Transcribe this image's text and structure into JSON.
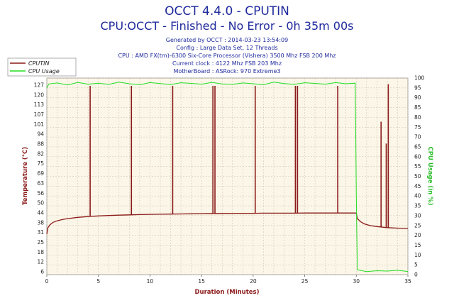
{
  "header": {
    "title": "OCCT 4.4.0 - CPUTIN",
    "subtitle": "CPU:OCCT - Finished - No Error - 0h 35m 00s",
    "info_lines": [
      "Generated by OCCT : 2014-03-23 13:54:09",
      "Config : Large Data Set, 12 Threads",
      "CPU : AMD FX(tm)-6300 Six-Core Processor (Vishera) 3500 Mhz FSB 200 Mhz",
      "Current clock : 4122 Mhz FSB 203 Mhz",
      "MotherBoard : ASRock: 970 Extreme3"
    ]
  },
  "colors": {
    "temperature": "#8b1a1a",
    "cpu_usage": "#22dd22",
    "plot_bg": "#fbf6e7",
    "grid": "#c9bfa8",
    "title": "#1f2a9c",
    "left_axis_label": "#8b1a1a",
    "right_axis_label": "#2fbf2f"
  },
  "chart_data": {
    "type": "line",
    "xlabel": "Duration (Minutes)",
    "ylabel": "Temperature (°C)",
    "y2label": "CPU Usage (in %)",
    "xlim": [
      0,
      35
    ],
    "ylim": [
      6,
      132
    ],
    "y2lim": [
      0,
      100
    ],
    "x_ticks": [
      "0",
      "5",
      "10",
      "15",
      "20",
      "25",
      "30",
      "35"
    ],
    "y_ticks": [
      "6",
      "12",
      "18",
      "24",
      "30",
      "36",
      "42",
      "48",
      "54",
      "60",
      "66",
      "72",
      "78",
      "84",
      "90",
      "96",
      "102",
      "108",
      "114",
      "120",
      "126"
    ],
    "y_tick_labels": [
      "6",
      "12",
      "18",
      "25",
      "31",
      "38",
      "44",
      "50",
      "56",
      "63",
      "69",
      "75",
      "82",
      "88",
      "94",
      "101",
      "107",
      "113",
      "120",
      "127"
    ],
    "y2_ticks": [
      "0",
      "5",
      "10",
      "15",
      "20",
      "25",
      "30",
      "35",
      "40",
      "45",
      "50",
      "55",
      "60",
      "65",
      "70",
      "75",
      "80",
      "85",
      "90",
      "95",
      "100"
    ],
    "legend": [
      "CPUTIN",
      "CPU Usage"
    ],
    "grid": true,
    "legend_position": "top-left",
    "series": [
      {
        "name": "CPUTIN",
        "axis": "left",
        "x": [
          0,
          0.1,
          0.3,
          0.6,
          1,
          1.5,
          2,
          3,
          4,
          5,
          6,
          7,
          8,
          9,
          10,
          11,
          12,
          13,
          14,
          15,
          16,
          17,
          18,
          19,
          20,
          21,
          22,
          23,
          24,
          25,
          26,
          27,
          28,
          29,
          29.9,
          30.0,
          30.1,
          30.4,
          30.8,
          31.3,
          32,
          33,
          34,
          35
        ],
        "y": [
          32,
          36,
          38,
          39.5,
          40.5,
          41.3,
          41.9,
          42.7,
          43.2,
          43.6,
          43.9,
          44.1,
          44.3,
          44.5,
          44.6,
          44.7,
          44.8,
          44.9,
          45.0,
          45.1,
          45.2,
          45.2,
          45.3,
          45.3,
          45.3,
          45.4,
          45.4,
          45.4,
          45.4,
          45.5,
          45.5,
          45.5,
          45.5,
          45.5,
          45.5,
          45.4,
          42,
          40,
          38.5,
          37.5,
          36.8,
          36.1,
          35.8,
          35.6
        ],
        "spikes": [
          {
            "x": 4.2,
            "y": 127
          },
          {
            "x": 8.2,
            "y": 127
          },
          {
            "x": 12.2,
            "y": 127
          },
          {
            "x": 16.1,
            "y": 127
          },
          {
            "x": 16.3,
            "y": 127
          },
          {
            "x": 20.2,
            "y": 127
          },
          {
            "x": 24.1,
            "y": 127
          },
          {
            "x": 24.3,
            "y": 127
          },
          {
            "x": 28.2,
            "y": 127
          },
          {
            "x": 32.4,
            "y": 104
          },
          {
            "x": 32.9,
            "y": 90
          },
          {
            "x": 33.1,
            "y": 128
          }
        ]
      },
      {
        "name": "CPU Usage",
        "axis": "right",
        "x": [
          0,
          0.2,
          1,
          2,
          3,
          4,
          5,
          6,
          7,
          8,
          9,
          10,
          11,
          12,
          13,
          14,
          15,
          16,
          17,
          18,
          19,
          20,
          21,
          22,
          23,
          24,
          25,
          26,
          27,
          28,
          29,
          29.9,
          30.0,
          30.1,
          31,
          32,
          33,
          34,
          35
        ],
        "y": [
          95,
          97,
          97.5,
          96.5,
          97.8,
          96.9,
          97.4,
          96.8,
          97.9,
          97.1,
          96.6,
          97.7,
          97.2,
          96.7,
          97.6,
          97.3,
          96.9,
          97.8,
          97.0,
          96.8,
          97.5,
          97.1,
          96.6,
          97.9,
          97.2,
          96.8,
          97.6,
          97.3,
          96.9,
          97.7,
          97.1,
          97.4,
          40,
          2.5,
          1.5,
          2,
          1.8,
          2.2,
          1.6
        ]
      }
    ]
  }
}
